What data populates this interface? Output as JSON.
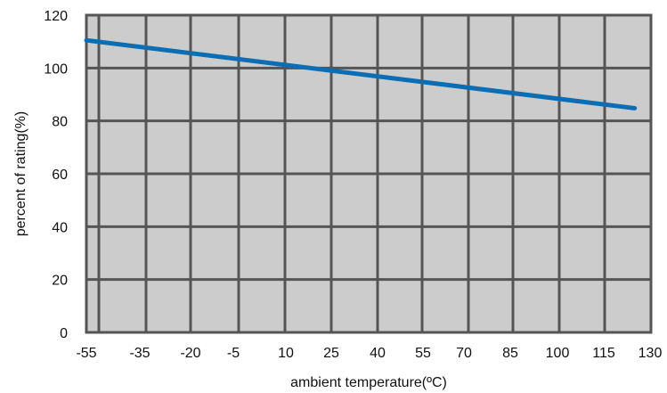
{
  "chart_data": {
    "type": "line",
    "title": "",
    "xlabel": "ambient temperature(ºC)",
    "ylabel": "percent of rating(%)",
    "x_ticks": [
      -55,
      -35,
      -20,
      -5,
      10,
      25,
      40,
      55,
      70,
      85,
      100,
      115,
      130
    ],
    "y_ticks": [
      0,
      20,
      40,
      60,
      80,
      100,
      120
    ],
    "x_tick_labels": [
      "-55",
      "-35",
      "-20",
      "-5",
      "10",
      "25",
      "40",
      "55",
      "70",
      "85",
      "100",
      "115",
      "130"
    ],
    "y_tick_labels": [
      "0",
      "20",
      "40",
      "60",
      "80",
      "100",
      "120"
    ],
    "ylim": [
      0,
      120
    ],
    "xlim": [
      -55,
      130
    ],
    "grid": true,
    "legend": "none",
    "series": [
      {
        "x": [
          -55,
          125
        ],
        "y": [
          110.5,
          84.8
        ],
        "color": "#0b6db4"
      }
    ],
    "colors": {
      "plot_bg": "#cccccc",
      "grid": "#555555",
      "line": "#0b6db4"
    }
  }
}
